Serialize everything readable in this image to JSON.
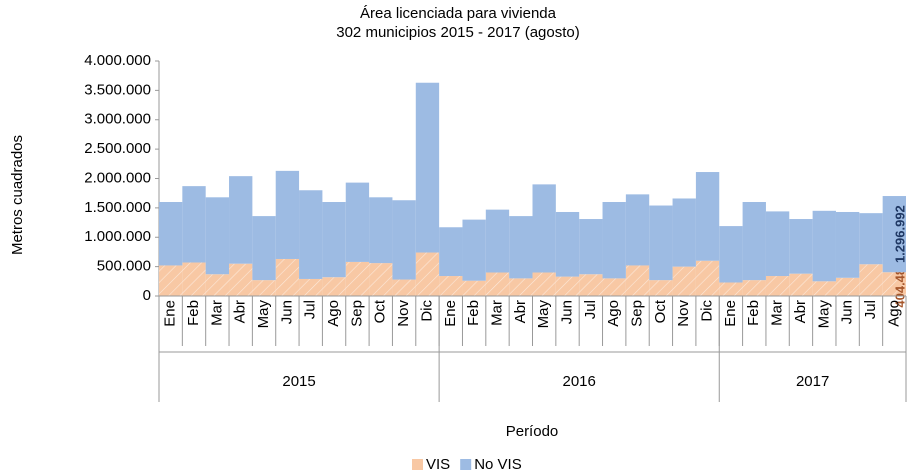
{
  "chart_data": {
    "type": "stacked_bar",
    "title": "Área licenciada para vivienda",
    "subtitle": "302 municipios 2015 - 2017 (agosto)",
    "y_label": "Metros cuadrados",
    "x_label": "Período",
    "categories": [
      "Ene",
      "Feb",
      "Mar",
      "Abr",
      "May",
      "Jun",
      "Jul",
      "Ago",
      "Sep",
      "Oct",
      "Nov",
      "Dic",
      "Ene",
      "Feb",
      "Mar",
      "Abr",
      "May",
      "Jun",
      "Jul",
      "Ago",
      "Sep",
      "Oct",
      "Nov",
      "Dic",
      "Ene",
      "Feb",
      "Mar",
      "Abr",
      "May",
      "Jun",
      "Jul",
      "Ago"
    ],
    "groups": [
      "2015",
      "2016",
      "2017"
    ],
    "series": [
      {
        "name": "VIS",
        "color": "#f8c8a4",
        "label_color": "#a5552a",
        "values": [
          520000,
          570000,
          370000,
          550000,
          270000,
          630000,
          290000,
          320000,
          580000,
          560000,
          280000,
          740000,
          340000,
          260000,
          400000,
          300000,
          400000,
          330000,
          370000,
          300000,
          520000,
          270000,
          500000,
          600000,
          230000,
          270000,
          340000,
          380000,
          250000,
          310000,
          540000,
          404488
        ],
        "value_labels": [
          null,
          null,
          null,
          null,
          null,
          null,
          null,
          null,
          null,
          null,
          null,
          null,
          null,
          null,
          null,
          null,
          null,
          null,
          null,
          null,
          null,
          null,
          null,
          null,
          null,
          null,
          null,
          null,
          null,
          null,
          null,
          "404.488"
        ]
      },
      {
        "name": "No VIS",
        "color": "#9dbbe3",
        "label_color": "#1f3864",
        "values": [
          1080000,
          1300000,
          1310000,
          1490000,
          1090000,
          1500000,
          1510000,
          1280000,
          1350000,
          1120000,
          1350000,
          2890000,
          830000,
          1040000,
          1070000,
          1060000,
          1500000,
          1100000,
          940000,
          1300000,
          1210000,
          1270000,
          1160000,
          1510000,
          960000,
          1330000,
          1100000,
          930000,
          1200000,
          1120000,
          870000,
          1296992
        ],
        "value_labels": [
          null,
          null,
          null,
          null,
          null,
          null,
          null,
          null,
          null,
          null,
          null,
          null,
          null,
          null,
          null,
          null,
          null,
          null,
          null,
          null,
          null,
          null,
          null,
          null,
          null,
          null,
          null,
          null,
          null,
          null,
          null,
          "1.296.992"
        ]
      }
    ],
    "ylim": [
      0,
      4000000
    ],
    "yticks": [
      0,
      {
        "value": 500000,
        "label": "500.000"
      },
      {
        "value": 1000000,
        "label": "1.000.000"
      },
      {
        "value": 1500000,
        "label": "1.500.000"
      },
      {
        "value": 2000000,
        "label": "2.000.000"
      },
      {
        "value": 2500000,
        "label": "2.500.000"
      },
      {
        "value": 3000000,
        "label": "3.000.000"
      },
      {
        "value": 3500000,
        "label": "3.500.000"
      },
      {
        "value": 4000000,
        "label": "4.000.000"
      }
    ],
    "grid": false,
    "legend": "bottom"
  }
}
